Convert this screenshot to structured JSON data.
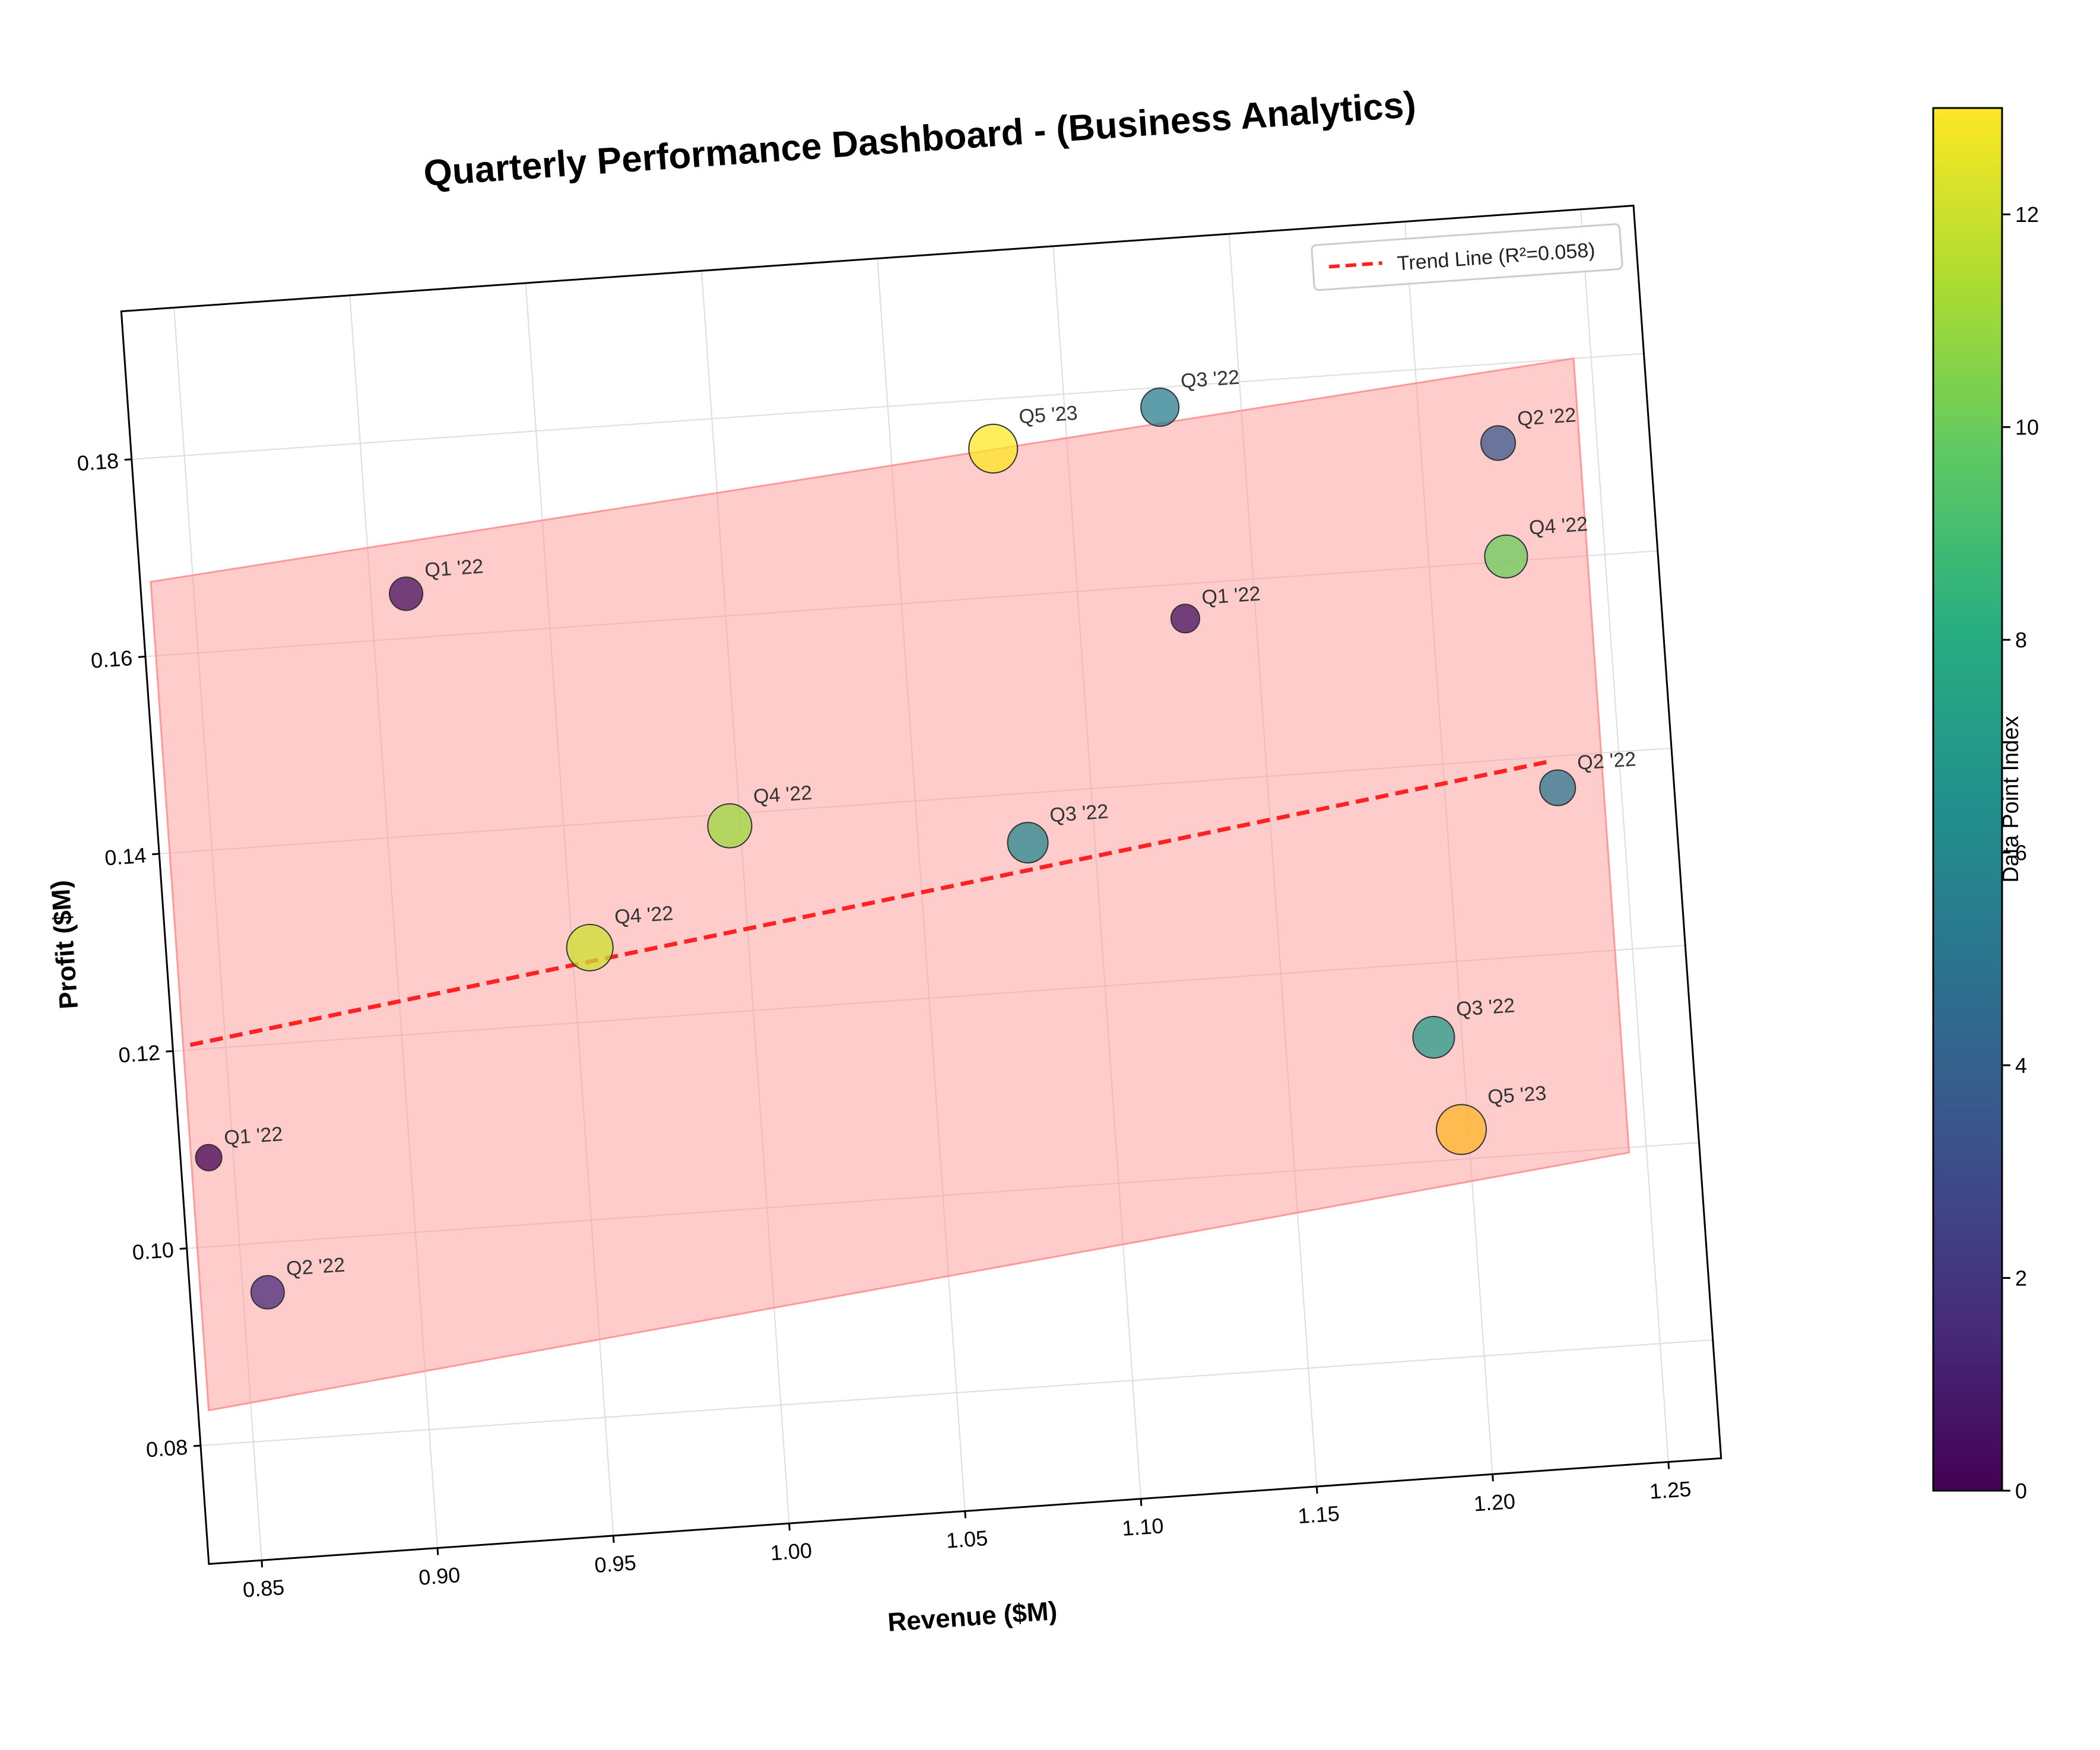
{
  "chart_data": {
    "type": "scatter",
    "title": "Quarterly Performance Dashboard - (Business Analytics)",
    "xlabel": "Revenue ($M)",
    "ylabel": "Profit ($M)",
    "xlim": [
      0.835,
      1.265
    ],
    "ylim": [
      0.068,
      0.195
    ],
    "xticks": [
      0.85,
      0.9,
      0.95,
      1.0,
      1.05,
      1.1,
      1.15,
      1.2,
      1.25
    ],
    "xtick_labels": [
      "0.85",
      "0.90",
      "0.95",
      "1.00",
      "1.05",
      "1.10",
      "1.15",
      "1.20",
      "1.25"
    ],
    "yticks": [
      0.08,
      0.1,
      0.12,
      0.14,
      0.16,
      0.18
    ],
    "ytick_labels": [
      "0.08",
      "0.10",
      "0.12",
      "0.14",
      "0.16",
      "0.18"
    ],
    "grid": true,
    "rotation_deg": -4,
    "points": [
      {
        "x": 0.843,
        "y": 0.109,
        "label": "Q1 '22",
        "index": 0,
        "size": 1
      },
      {
        "x": 0.91,
        "y": 0.1645,
        "label": "Q1 '22",
        "index": 0.5,
        "size": 1.6
      },
      {
        "x": 1.13,
        "y": 0.1565,
        "label": "Q1 '22",
        "index": 0.5,
        "size": 1.2
      },
      {
        "x": 0.857,
        "y": 0.095,
        "label": "Q2 '22",
        "index": 1.5,
        "size": 1.6
      },
      {
        "x": 1.222,
        "y": 0.172,
        "label": "Q2 '22",
        "index": 3.5,
        "size": 1.7
      },
      {
        "x": 1.232,
        "y": 0.1368,
        "label": "Q2 '22",
        "index": 5,
        "size": 1.8
      },
      {
        "x": 1.081,
        "y": 0.135,
        "label": "Q3 '22",
        "index": 6,
        "size": 2.2
      },
      {
        "x": 1.127,
        "y": 0.178,
        "label": "Q3 '22",
        "index": 5.5,
        "size": 2.0
      },
      {
        "x": 1.192,
        "y": 0.1125,
        "label": "Q3 '22",
        "index": 7,
        "size": 2.3
      },
      {
        "x": 0.955,
        "y": 0.1275,
        "label": "Q4 '22",
        "index": 12,
        "size": 2.7
      },
      {
        "x": 0.997,
        "y": 0.1388,
        "label": "Q4 '22",
        "index": 11,
        "size": 2.5
      },
      {
        "x": 1.222,
        "y": 0.1605,
        "label": "Q4 '22",
        "index": 10,
        "size": 2.4
      },
      {
        "x": 1.079,
        "y": 0.175,
        "label": "Q5 '23",
        "index": 13,
        "size": 2.9
      },
      {
        "x": 1.198,
        "y": 0.103,
        "label": "Q5 '23",
        "index": 14,
        "size": 3.0
      }
    ],
    "trend_line": {
      "x": [
        0.84,
        1.23
      ],
      "y": [
        0.1205,
        0.1395
      ],
      "color": "#ff2222"
    },
    "legend": {
      "entries": [
        "Trend Line (R²=0.058)"
      ],
      "position": "top-right"
    },
    "confidence_band": {
      "x": [
        0.838,
        1.245
      ],
      "upper": [
        0.1675,
        0.18
      ],
      "lower": [
        0.0835,
        0.0995
      ],
      "color": "#ff9999"
    },
    "colorbar": {
      "label": "Data Point Index",
      "range": [
        0,
        13
      ],
      "ticks": [
        0,
        2,
        4,
        6,
        8,
        10,
        12
      ],
      "tick_labels": [
        "0",
        "2",
        "4",
        "6",
        "8",
        "10",
        "12"
      ],
      "colormap": "viridis"
    }
  }
}
